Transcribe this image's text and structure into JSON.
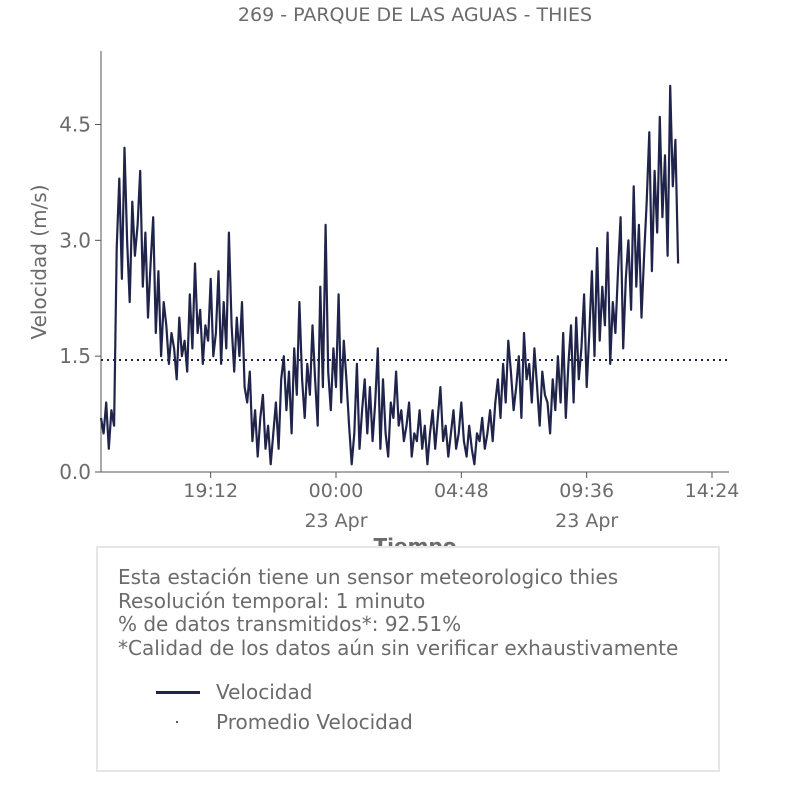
{
  "chart_data": {
    "type": "line",
    "title": "269 - PARQUE DE LAS AGUAS - THIES",
    "xlabel": "Tiempo",
    "ylabel": "Velocidad (m/s)",
    "x_unit": "hours since 15:00 on 22 Apr",
    "xlim": [
      0.0,
      23.4
    ],
    "ylim": [
      0.0,
      5.4
    ],
    "x_ticks": [
      {
        "value": 4.2,
        "label": "19:12",
        "sublabel": ""
      },
      {
        "value": 9.0,
        "label": "00:00",
        "sublabel": "23 Apr"
      },
      {
        "value": 13.8,
        "label": "04:48",
        "sublabel": ""
      },
      {
        "value": 18.6,
        "label": "09:36",
        "sublabel": "23 Apr"
      },
      {
        "value": 23.4,
        "label": "14:24",
        "sublabel": ""
      }
    ],
    "y_ticks": [
      {
        "value": 0.0,
        "label": "0.0"
      },
      {
        "value": 1.5,
        "label": "1.5"
      },
      {
        "value": 3.0,
        "label": "3.0"
      },
      {
        "value": 4.5,
        "label": "4.5"
      }
    ],
    "series": [
      {
        "name": "Velocidad",
        "color": "#20244a",
        "style": "solid",
        "x": [
          0.0,
          0.1,
          0.2,
          0.3,
          0.4,
          0.5,
          0.6,
          0.7,
          0.8,
          0.9,
          1.0,
          1.1,
          1.2,
          1.3,
          1.4,
          1.5,
          1.6,
          1.7,
          1.8,
          1.9,
          2.0,
          2.1,
          2.2,
          2.3,
          2.4,
          2.5,
          2.6,
          2.7,
          2.8,
          2.9,
          3.0,
          3.1,
          3.2,
          3.3,
          3.4,
          3.5,
          3.6,
          3.7,
          3.8,
          3.9,
          4.0,
          4.1,
          4.2,
          4.3,
          4.4,
          4.5,
          4.6,
          4.7,
          4.8,
          4.9,
          5.0,
          5.1,
          5.2,
          5.3,
          5.4,
          5.5,
          5.6,
          5.7,
          5.8,
          5.9,
          6.0,
          6.1,
          6.2,
          6.3,
          6.4,
          6.5,
          6.6,
          6.7,
          6.8,
          6.9,
          7.0,
          7.1,
          7.2,
          7.3,
          7.4,
          7.5,
          7.6,
          7.7,
          7.8,
          7.9,
          8.0,
          8.1,
          8.2,
          8.3,
          8.4,
          8.5,
          8.6,
          8.7,
          8.8,
          8.9,
          9.0,
          9.1,
          9.2,
          9.3,
          9.4,
          9.5,
          9.6,
          9.7,
          9.8,
          9.9,
          10.0,
          10.1,
          10.2,
          10.3,
          10.4,
          10.5,
          10.6,
          10.7,
          10.8,
          10.9,
          11.0,
          11.1,
          11.2,
          11.3,
          11.4,
          11.5,
          11.6,
          11.7,
          11.8,
          11.9,
          12.0,
          12.1,
          12.2,
          12.3,
          12.4,
          12.5,
          12.6,
          12.7,
          12.8,
          12.9,
          13.0,
          13.1,
          13.2,
          13.3,
          13.4,
          13.5,
          13.6,
          13.7,
          13.8,
          13.9,
          14.0,
          14.1,
          14.2,
          14.3,
          14.4,
          14.5,
          14.6,
          14.7,
          14.8,
          14.9,
          15.0,
          15.1,
          15.2,
          15.3,
          15.4,
          15.5,
          15.6,
          15.7,
          15.8,
          15.9,
          16.0,
          16.1,
          16.2,
          16.3,
          16.4,
          16.5,
          16.6,
          16.7,
          16.8,
          16.9,
          17.0,
          17.1,
          17.2,
          17.3,
          17.4,
          17.5,
          17.6,
          17.7,
          17.8,
          17.9,
          18.0,
          18.1,
          18.2,
          18.3,
          18.4,
          18.5,
          18.6,
          18.7,
          18.8,
          18.9,
          19.0,
          19.1,
          19.2,
          19.3,
          19.4,
          19.5,
          19.6,
          19.7,
          19.8,
          19.9,
          20.0,
          20.1,
          20.2,
          20.3,
          20.4,
          20.5,
          20.6,
          20.7,
          20.8,
          20.9,
          21.0,
          21.1,
          21.2,
          21.3,
          21.4,
          21.5,
          21.6,
          21.7,
          21.8,
          21.9,
          22.0,
          22.1
        ],
        "values": [
          0.7,
          0.5,
          0.9,
          0.3,
          0.8,
          0.6,
          2.9,
          3.8,
          2.5,
          4.2,
          3.0,
          2.2,
          3.5,
          2.8,
          3.2,
          3.9,
          2.4,
          3.1,
          2.0,
          2.7,
          3.3,
          1.8,
          2.6,
          1.5,
          2.2,
          1.9,
          1.4,
          1.8,
          1.6,
          1.2,
          2.0,
          1.5,
          1.7,
          1.3,
          2.3,
          1.6,
          2.7,
          1.8,
          2.1,
          1.4,
          1.9,
          1.7,
          2.5,
          1.5,
          1.8,
          2.6,
          1.4,
          2.2,
          1.6,
          3.1,
          1.9,
          1.3,
          2.0,
          1.5,
          2.2,
          1.1,
          0.9,
          1.3,
          0.4,
          0.8,
          0.2,
          0.7,
          1.0,
          0.3,
          0.6,
          0.1,
          0.5,
          0.9,
          0.3,
          1.2,
          1.5,
          0.8,
          1.3,
          0.5,
          1.6,
          1.0,
          2.2,
          1.2,
          0.7,
          1.4,
          1.0,
          1.9,
          1.2,
          0.6,
          2.4,
          1.1,
          3.2,
          1.3,
          0.8,
          1.6,
          1.1,
          2.3,
          0.9,
          1.7,
          1.2,
          0.6,
          0.1,
          0.5,
          1.4,
          0.3,
          0.8,
          1.2,
          0.5,
          1.1,
          0.4,
          0.9,
          1.6,
          0.3,
          1.2,
          0.5,
          0.2,
          0.9,
          0.7,
          1.3,
          0.6,
          0.8,
          0.4,
          0.6,
          0.9,
          0.2,
          0.5,
          0.4,
          0.8,
          0.3,
          0.6,
          0.1,
          0.5,
          0.8,
          0.3,
          0.7,
          1.1,
          0.4,
          0.6,
          0.2,
          0.5,
          0.8,
          0.3,
          0.5,
          0.9,
          0.4,
          0.2,
          0.6,
          0.3,
          0.1,
          0.5,
          0.4,
          0.7,
          0.3,
          0.5,
          0.8,
          0.4,
          0.9,
          1.2,
          0.7,
          1.4,
          0.9,
          1.7,
          1.3,
          0.8,
          1.1,
          1.5,
          0.7,
          1.8,
          1.2,
          1.4,
          0.9,
          1.6,
          1.1,
          0.6,
          1.3,
          1.0,
          0.9,
          0.5,
          1.2,
          0.8,
          1.5,
          0.9,
          1.8,
          0.7,
          1.4,
          1.9,
          0.9,
          2.0,
          1.2,
          1.6,
          2.3,
          1.1,
          1.8,
          2.6,
          1.5,
          2.9,
          1.7,
          2.4,
          1.9,
          3.1,
          1.4,
          2.2,
          1.8,
          2.6,
          3.3,
          1.6,
          2.5,
          3.0,
          2.1,
          3.7,
          2.4,
          3.2,
          2.0,
          2.8,
          3.5,
          4.4,
          2.6,
          3.9,
          3.1,
          4.6,
          3.3,
          4.1,
          2.8,
          5.0,
          3.7,
          4.3,
          2.7
        ]
      },
      {
        "name": "Promedio Velocidad",
        "color": "#20244a",
        "style": "dotted",
        "values": [
          1.45
        ]
      }
    ],
    "grid": false,
    "legend_placement": "below"
  },
  "info": {
    "line1": "Esta estación tiene un sensor meteorologico thies",
    "line2": "Resolución temporal: 1 minuto",
    "line3": "% de datos transmitidos*: 92.51%",
    "line4": "*Calidad de los datos aún sin verificar exhaustivamente"
  },
  "legend": {
    "velocidad": "Velocidad",
    "promedio": "Promedio Velocidad"
  }
}
